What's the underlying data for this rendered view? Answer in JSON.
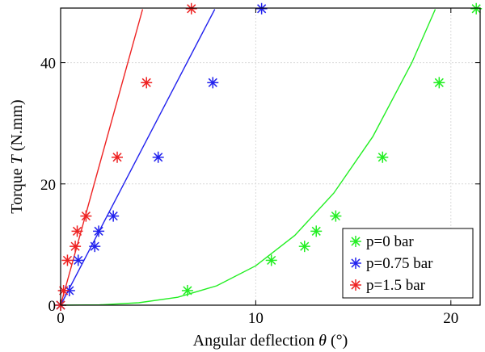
{
  "chart_data": {
    "type": "scatter",
    "xlabel": "Angular deflection",
    "xlabel_symbol": "θ",
    "xlabel_unit": "(°)",
    "ylabel": "Torque",
    "ylabel_symbol": "T",
    "ylabel_unit": "(N.mm)",
    "xlim": [
      0,
      21.5
    ],
    "ylim": [
      0,
      49
    ],
    "xticks": [
      0,
      10,
      20
    ],
    "yticks": [
      0,
      20,
      40
    ],
    "grid": true,
    "legend_position": "bottom-right",
    "series": [
      {
        "name": "p=0 bar",
        "color": "#22ee22",
        "marker": "asterisk",
        "points": [
          [
            0,
            0
          ],
          [
            6.5,
            2.4
          ],
          [
            10.8,
            7.4
          ],
          [
            12.5,
            9.7
          ],
          [
            13.1,
            12.2
          ],
          [
            14.1,
            14.7
          ],
          [
            16.5,
            24.4
          ],
          [
            19.4,
            36.7
          ],
          [
            21.3,
            48.9
          ]
        ],
        "fit": [
          [
            0,
            0
          ],
          [
            2,
            0.05
          ],
          [
            4,
            0.4
          ],
          [
            6,
            1.3
          ],
          [
            8,
            3.2
          ],
          [
            10,
            6.5
          ],
          [
            12,
            11.5
          ],
          [
            14,
            18.5
          ],
          [
            16,
            27.8
          ],
          [
            18,
            40.0
          ],
          [
            19.2,
            48.8
          ]
        ]
      },
      {
        "name": "p=0.75 bar",
        "color": "#2222ee",
        "marker": "asterisk",
        "points": [
          [
            0,
            0
          ],
          [
            0.45,
            2.4
          ],
          [
            0.9,
            7.4
          ],
          [
            1.75,
            9.7
          ],
          [
            1.95,
            12.2
          ],
          [
            2.7,
            14.7
          ],
          [
            5.0,
            24.4
          ],
          [
            7.8,
            36.7
          ],
          [
            10.3,
            48.9
          ]
        ],
        "fit": [
          [
            0,
            0
          ],
          [
            7.9,
            48.8
          ]
        ]
      },
      {
        "name": "p=1.5 bar",
        "color": "#ee2222",
        "marker": "asterisk",
        "points": [
          [
            0,
            0
          ],
          [
            0.15,
            2.4
          ],
          [
            0.35,
            7.4
          ],
          [
            0.75,
            9.7
          ],
          [
            0.85,
            12.2
          ],
          [
            1.3,
            14.7
          ],
          [
            2.9,
            24.4
          ],
          [
            4.4,
            36.7
          ],
          [
            6.7,
            48.9
          ]
        ],
        "fit": [
          [
            0,
            0
          ],
          [
            4.2,
            48.8
          ]
        ]
      }
    ]
  }
}
